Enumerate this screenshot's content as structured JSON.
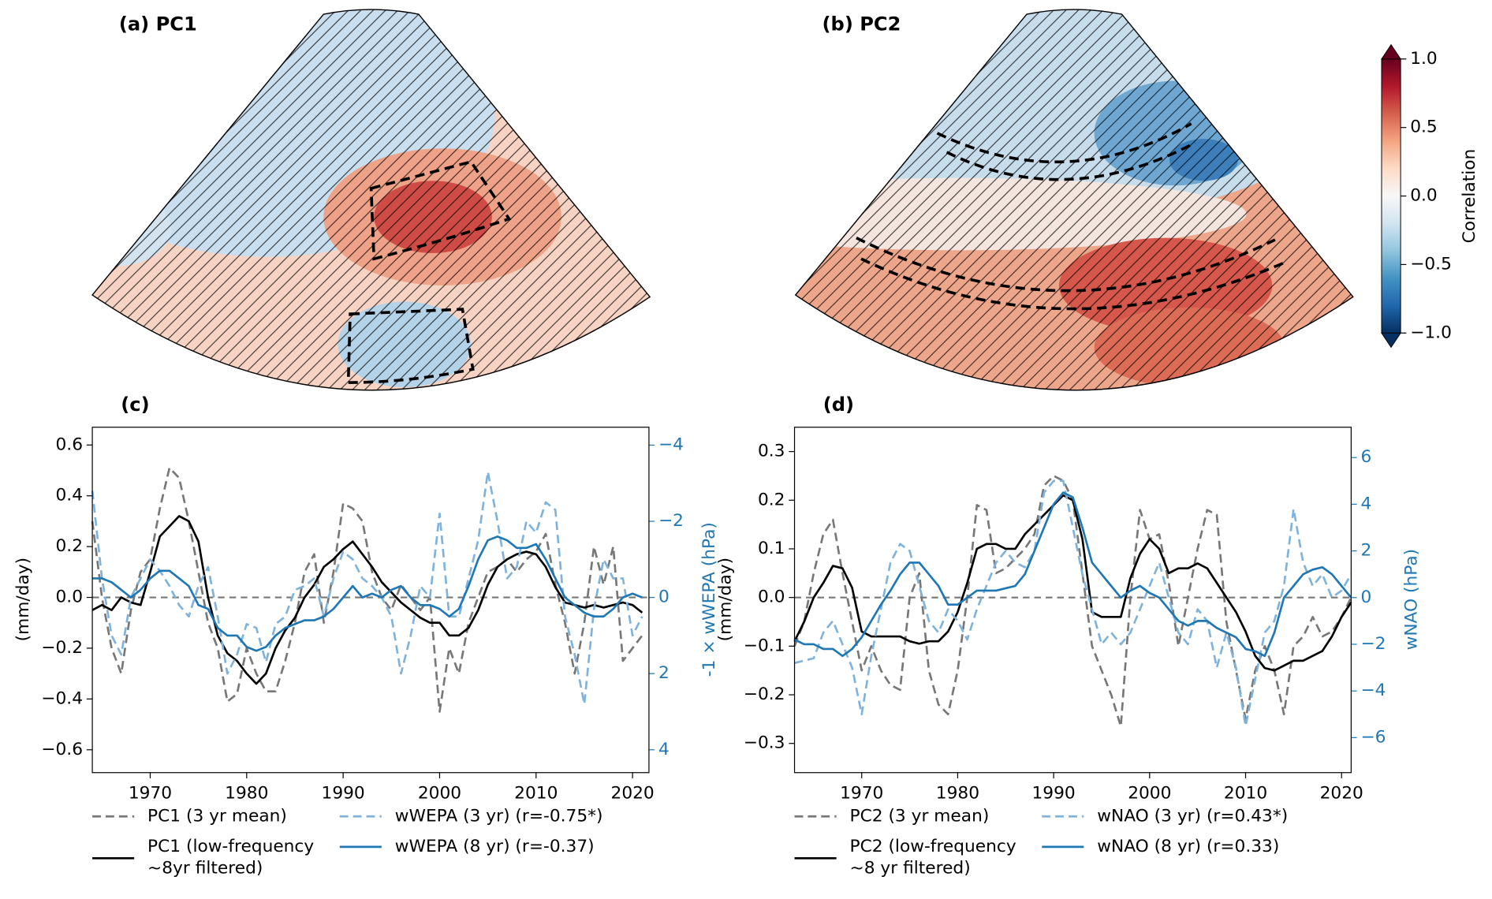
{
  "chart_data": [
    {
      "type": "map",
      "title": "(a) PC1"
    },
    {
      "type": "map",
      "title": "(b) PC2"
    },
    {
      "type": "line",
      "title": "(c)",
      "ylabel": "(mm/day)",
      "y2label": "-1 × wWEPA (hPa)",
      "y2color": "#1f77b4",
      "x": [
        1964,
        1965,
        1966,
        1967,
        1968,
        1969,
        1970,
        1971,
        1972,
        1973,
        1974,
        1975,
        1976,
        1977,
        1978,
        1979,
        1980,
        1981,
        1982,
        1983,
        1984,
        1985,
        1986,
        1987,
        1988,
        1989,
        1990,
        1991,
        1992,
        1993,
        1994,
        1995,
        1996,
        1997,
        1998,
        1999,
        2000,
        2001,
        2002,
        2003,
        2004,
        2005,
        2006,
        2007,
        2008,
        2009,
        2010,
        2011,
        2012,
        2013,
        2014,
        2015,
        2016,
        2017,
        2018,
        2019,
        2020,
        2021
      ],
      "xlim": [
        1964,
        2021.7
      ],
      "xticks": [
        1970,
        1980,
        1990,
        2000,
        2010,
        2020
      ],
      "ylim": [
        -0.69,
        0.67
      ],
      "yticks": [
        0.6,
        0.4,
        0.2,
        {
          "value": 0,
          "label": "0.0"
        },
        {
          "value": -0.2,
          "label": "−0.2"
        },
        {
          "value": -0.4,
          "label": "−0.4"
        },
        {
          "value": -0.6,
          "label": "−0.6"
        }
      ],
      "y2lim": [
        4.6,
        -4.47
      ],
      "y2ticks": [
        {
          "value": -4,
          "label": "−4"
        },
        {
          "value": -2,
          "label": "−2"
        },
        0,
        2,
        4
      ],
      "hline": 0,
      "series": [
        {
          "name": "PC1 (3 yr mean)",
          "color": "#777777",
          "dash": true,
          "values": [
            0.3,
            0.0,
            -0.2,
            -0.3,
            -0.05,
            0.1,
            0.15,
            0.35,
            0.51,
            0.47,
            0.3,
            0.1,
            -0.1,
            -0.2,
            -0.41,
            -0.38,
            -0.2,
            -0.3,
            -0.37,
            -0.37,
            -0.25,
            -0.1,
            0.1,
            0.17,
            -0.1,
            0.1,
            0.37,
            0.35,
            0.3,
            0.1,
            0.0,
            -0.05,
            0.05,
            0.0,
            -0.05,
            0.0,
            -0.45,
            -0.2,
            -0.3,
            -0.1,
            0.0,
            0.1,
            0.12,
            0.15,
            0.1,
            0.15,
            0.18,
            0.25,
            0.05,
            -0.1,
            -0.3,
            -0.1,
            0.2,
            0.05,
            0.2,
            -0.25,
            -0.2,
            -0.15
          ]
        },
        {
          "name": "PC1 (low-frequency\n~8yr filtered)",
          "color": "#000000",
          "dash": false,
          "values": [
            -0.05,
            -0.03,
            -0.05,
            0.0,
            -0.02,
            -0.03,
            0.1,
            0.24,
            0.28,
            0.32,
            0.3,
            0.22,
            0.0,
            -0.15,
            -0.22,
            -0.25,
            -0.3,
            -0.34,
            -0.3,
            -0.2,
            -0.13,
            -0.08,
            0.0,
            0.05,
            0.12,
            0.15,
            0.19,
            0.22,
            0.17,
            0.12,
            0.06,
            0.02,
            -0.02,
            -0.05,
            -0.08,
            -0.1,
            -0.1,
            -0.15,
            -0.15,
            -0.12,
            -0.05,
            0.05,
            0.12,
            0.15,
            0.17,
            0.18,
            0.17,
            0.12,
            0.04,
            -0.02,
            -0.03,
            -0.04,
            -0.03,
            -0.04,
            -0.03,
            -0.02,
            -0.03,
            -0.06
          ]
        },
        {
          "name": "wWEPA (3 yr) (r=-0.75*)",
          "color": "#7fb3dc",
          "dash": true,
          "axis": "y2",
          "values": [
            -2.8,
            -0.5,
            1.0,
            1.5,
            0.0,
            -0.5,
            -1.0,
            -0.7,
            -0.3,
            0.2,
            0.5,
            -0.3,
            -0.8,
            0.5,
            2.0,
            1.5,
            0.7,
            0.8,
            1.7,
            0.7,
            0.5,
            -0.2,
            -0.3,
            -0.5,
            0.5,
            -0.5,
            -1.2,
            -1.0,
            -0.5,
            -0.3,
            0.0,
            0.5,
            2.0,
            1.0,
            -0.3,
            0.0,
            -2.2,
            0.5,
            0.5,
            -0.5,
            -1.5,
            -3.3,
            -2.0,
            -0.5,
            -0.8,
            -2.0,
            -1.7,
            -2.5,
            -2.3,
            0.5,
            1.5,
            2.8,
            0.3,
            -1.0,
            -0.5,
            -0.5,
            1.0,
            0.5
          ]
        },
        {
          "name": "wWEPA (8 yr) (r=-0.37)",
          "color": "#1f77b4",
          "dash": false,
          "axis": "y2",
          "values": [
            -0.5,
            -0.5,
            -0.4,
            -0.2,
            0.0,
            -0.2,
            -0.5,
            -0.7,
            -0.7,
            -0.5,
            -0.3,
            0.2,
            0.3,
            0.8,
            1.0,
            1.0,
            1.3,
            1.4,
            1.3,
            1.0,
            0.8,
            0.7,
            0.6,
            0.6,
            0.5,
            0.3,
            0.0,
            -0.3,
            0.0,
            -0.1,
            0.0,
            -0.2,
            -0.3,
            0.0,
            0.2,
            0.2,
            0.3,
            0.5,
            0.3,
            -0.3,
            -1.0,
            -1.5,
            -1.6,
            -1.5,
            -1.3,
            -1.3,
            -1.4,
            -1.0,
            -0.5,
            0.0,
            0.2,
            0.4,
            0.5,
            0.5,
            0.3,
            0.0,
            -0.1,
            0.0
          ]
        }
      ]
    },
    {
      "type": "line",
      "title": "(d)",
      "ylabel": "(mm/day)",
      "y2label": "wNAO (hPa)",
      "y2color": "#1f77b4",
      "x": [
        1963,
        1964,
        1965,
        1966,
        1967,
        1968,
        1969,
        1970,
        1971,
        1972,
        1973,
        1974,
        1975,
        1976,
        1977,
        1978,
        1979,
        1980,
        1981,
        1982,
        1983,
        1984,
        1985,
        1986,
        1987,
        1988,
        1989,
        1990,
        1991,
        1992,
        1993,
        1994,
        1995,
        1996,
        1997,
        1998,
        1999,
        2000,
        2001,
        2002,
        2003,
        2004,
        2005,
        2006,
        2007,
        2008,
        2009,
        2010,
        2011,
        2012,
        2013,
        2014,
        2015,
        2016,
        2017,
        2018,
        2019,
        2020,
        2021
      ],
      "xlim": [
        1963,
        2021
      ],
      "xticks": [
        1970,
        1980,
        1990,
        2000,
        2010,
        2020
      ],
      "ylim": [
        -0.36,
        0.35
      ],
      "yticks": [
        0.3,
        0.2,
        0.1,
        {
          "value": 0,
          "label": "0.0"
        },
        {
          "value": -0.1,
          "label": "−0.1"
        },
        {
          "value": -0.2,
          "label": "−0.2"
        },
        {
          "value": -0.3,
          "label": "−0.3"
        }
      ],
      "y2lim": [
        -7.5,
        7.3
      ],
      "y2ticks": [
        6,
        4,
        2,
        0,
        {
          "value": -2,
          "label": "−2"
        },
        {
          "value": -4,
          "label": "−4"
        },
        {
          "value": -6,
          "label": "−6"
        }
      ],
      "hline": 0,
      "series": [
        {
          "name": "PC2 (3 yr mean)",
          "color": "#777777",
          "dash": true,
          "values": [
            -0.1,
            -0.05,
            0.05,
            0.13,
            0.16,
            0.05,
            -0.05,
            -0.15,
            -0.1,
            -0.15,
            -0.18,
            -0.19,
            0.0,
            0.05,
            -0.15,
            -0.22,
            -0.24,
            -0.15,
            0.0,
            0.19,
            0.18,
            0.05,
            0.06,
            0.08,
            0.1,
            0.13,
            0.23,
            0.25,
            0.24,
            0.2,
            0.05,
            -0.1,
            -0.15,
            -0.2,
            -0.265,
            0.0,
            0.18,
            0.12,
            0.13,
            0.03,
            -0.1,
            0.0,
            0.1,
            0.18,
            0.17,
            -0.05,
            -0.15,
            -0.25,
            -0.15,
            -0.1,
            -0.15,
            -0.24,
            -0.1,
            -0.08,
            -0.04,
            -0.08,
            -0.07,
            -0.04,
            0.0
          ]
        },
        {
          "name": "PC2 (low-frequency\n~8 yr filtered)",
          "color": "#000000",
          "dash": false,
          "values": [
            -0.09,
            -0.05,
            0.0,
            0.03,
            0.065,
            0.06,
            0.02,
            -0.07,
            -0.08,
            -0.08,
            -0.08,
            -0.08,
            -0.09,
            -0.095,
            -0.09,
            -0.09,
            -0.07,
            -0.03,
            0.03,
            0.1,
            0.11,
            0.11,
            0.1,
            0.1,
            0.13,
            0.15,
            0.17,
            0.19,
            0.21,
            0.2,
            0.12,
            -0.03,
            -0.04,
            -0.04,
            -0.04,
            0.04,
            0.09,
            0.12,
            0.1,
            0.05,
            0.06,
            0.06,
            0.07,
            0.06,
            0.03,
            0.0,
            -0.03,
            -0.07,
            -0.12,
            -0.145,
            -0.15,
            -0.14,
            -0.13,
            -0.13,
            -0.12,
            -0.11,
            -0.08,
            -0.04,
            -0.01
          ]
        },
        {
          "name": "wNAO (3 yr) (r=0.43*)",
          "color": "#7fb3dc",
          "dash": true,
          "axis": "y2",
          "values": [
            -2.8,
            -2.7,
            -2.6,
            -1.5,
            -1.0,
            -2.0,
            -3.0,
            -5.0,
            -2.5,
            -0.5,
            1.5,
            2.3,
            2.0,
            0.5,
            -1.0,
            -1.5,
            -0.5,
            -1.0,
            -1.8,
            -0.5,
            0.5,
            1.5,
            2.0,
            1.5,
            1.3,
            2.0,
            4.5,
            5.0,
            5.0,
            3.0,
            1.0,
            -0.5,
            -2.0,
            -1.5,
            -2.0,
            -1.5,
            -0.5,
            0.5,
            1.5,
            0.0,
            -1.5,
            -2.0,
            -0.5,
            -1.0,
            -3.0,
            -1.5,
            -3.0,
            -5.5,
            -3.5,
            -1.5,
            -1.0,
            0.5,
            3.8,
            1.5,
            0.5,
            1.0,
            0.0,
            0.3,
            1.0
          ]
        },
        {
          "name": "wNAO (8 yr) (r=0.33)",
          "color": "#1f77b4",
          "dash": false,
          "axis": "y2",
          "values": [
            -1.8,
            -2.0,
            -2.0,
            -2.2,
            -2.2,
            -2.5,
            -2.2,
            -1.7,
            -1.0,
            -0.3,
            0.3,
            1.0,
            1.5,
            1.5,
            1.0,
            0.5,
            -0.3,
            -0.3,
            0.0,
            0.3,
            0.3,
            0.3,
            0.4,
            0.5,
            1.0,
            2.0,
            3.0,
            4.0,
            4.5,
            4.3,
            3.0,
            1.5,
            1.0,
            0.5,
            0.0,
            0.3,
            0.5,
            0.2,
            0.0,
            -0.5,
            -1.0,
            -1.2,
            -1.0,
            -1.0,
            -1.3,
            -1.5,
            -1.7,
            -2.2,
            -2.3,
            -2.5,
            -1.5,
            0.0,
            0.5,
            1.0,
            1.2,
            1.3,
            1.0,
            0.5,
            0.0
          ]
        }
      ]
    }
  ],
  "colorbar": {
    "label": "Correlation",
    "lim": [
      -1,
      1
    ],
    "ticks": [
      {
        "value": 1,
        "label": "1.0"
      },
      {
        "value": 0.5,
        "label": "0.5"
      },
      {
        "value": 0,
        "label": "0.0"
      },
      {
        "value": -0.5,
        "label": "−0.5"
      },
      {
        "value": -1,
        "label": "−1.0"
      }
    ]
  }
}
